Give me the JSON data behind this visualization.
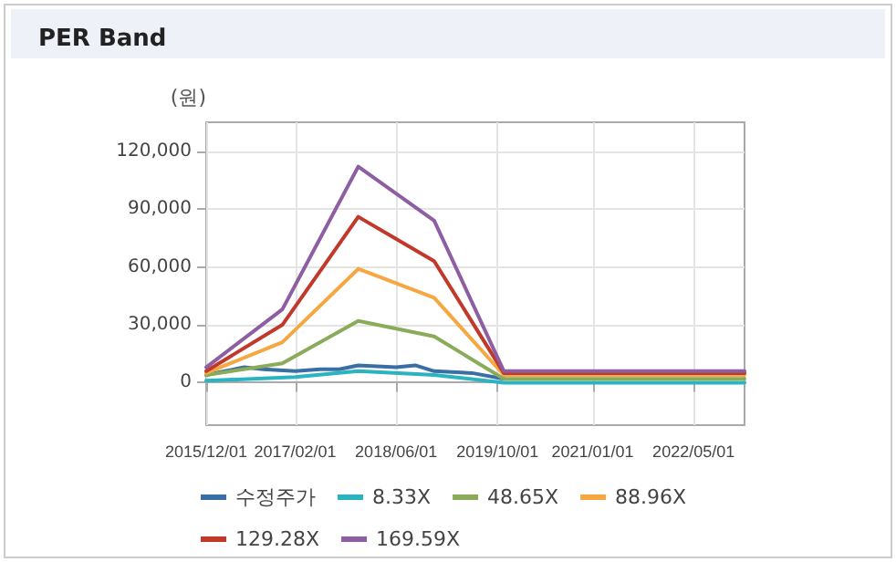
{
  "chart_data": {
    "type": "line",
    "title": "PER Band",
    "ylabel": "(원)",
    "xlim": [
      "2015-12-01",
      "2023-01-01"
    ],
    "xticks": [
      {
        "value": "2015-12-01",
        "label": "2015/12/01"
      },
      {
        "value": "2017-02-01",
        "label": "2017/02/01"
      },
      {
        "value": "2018-06-01",
        "label": "2018/06/01"
      },
      {
        "value": "2019-10-01",
        "label": "2019/10/01"
      },
      {
        "value": "2021-01-01",
        "label": "2021/01/01"
      },
      {
        "value": "2022-05-01",
        "label": "2022/05/01"
      }
    ],
    "ylim": [
      -22000,
      135000
    ],
    "yticks": [
      {
        "value": 0,
        "label": "0"
      },
      {
        "value": 30000,
        "label": "30,000"
      },
      {
        "value": 60000,
        "label": "60,000"
      },
      {
        "value": 90000,
        "label": "90,000"
      },
      {
        "value": 120000,
        "label": "120,000"
      }
    ],
    "grid": true,
    "legend": "bottom",
    "marker": "none",
    "line_style": "solid",
    "series": [
      {
        "name": "수정주가",
        "color": "#3a6ea5",
        "x": [
          "2015-12-01",
          "2016-03-01",
          "2016-06-01",
          "2016-09-01",
          "2017-02-01",
          "2017-06-01",
          "2017-09-01",
          "2017-12-01",
          "2018-06-01",
          "2018-09-01",
          "2018-12-01",
          "2019-06-01",
          "2019-11-01"
        ],
        "values": [
          4000,
          6000,
          8000,
          7000,
          6000,
          7000,
          7000,
          9000,
          8000,
          9000,
          6000,
          5000,
          2000
        ]
      },
      {
        "name": "8.33X",
        "color": "#2ab3c0",
        "x": [
          "2015-12-01",
          "2017-02-01",
          "2017-12-01",
          "2018-12-01",
          "2019-11-01",
          "2023-01-01"
        ],
        "values": [
          1000,
          3000,
          6000,
          4000,
          0,
          0
        ]
      },
      {
        "name": "48.65X",
        "color": "#8aac5a",
        "x": [
          "2015-12-01",
          "2016-12-01",
          "2017-12-01",
          "2018-12-01",
          "2019-11-01",
          "2023-01-01"
        ],
        "values": [
          4000,
          10000,
          32000,
          24000,
          2000,
          2000
        ]
      },
      {
        "name": "88.96X",
        "color": "#f5a742",
        "x": [
          "2015-12-01",
          "2016-12-01",
          "2017-12-01",
          "2018-12-01",
          "2019-11-01",
          "2023-01-01"
        ],
        "values": [
          5000,
          21000,
          59000,
          44000,
          4000,
          4000
        ]
      },
      {
        "name": "129.28X",
        "color": "#c0392b",
        "x": [
          "2015-12-01",
          "2016-12-01",
          "2017-12-01",
          "2018-12-01",
          "2019-11-01",
          "2023-01-01"
        ],
        "values": [
          6000,
          30000,
          86000,
          63000,
          5000,
          5000
        ]
      },
      {
        "name": "169.59X",
        "color": "#8e5ea2",
        "x": [
          "2015-12-01",
          "2016-12-01",
          "2017-12-01",
          "2018-12-01",
          "2019-11-01",
          "2023-01-01"
        ],
        "values": [
          8000,
          38000,
          112000,
          84000,
          6000,
          6000
        ]
      }
    ]
  }
}
